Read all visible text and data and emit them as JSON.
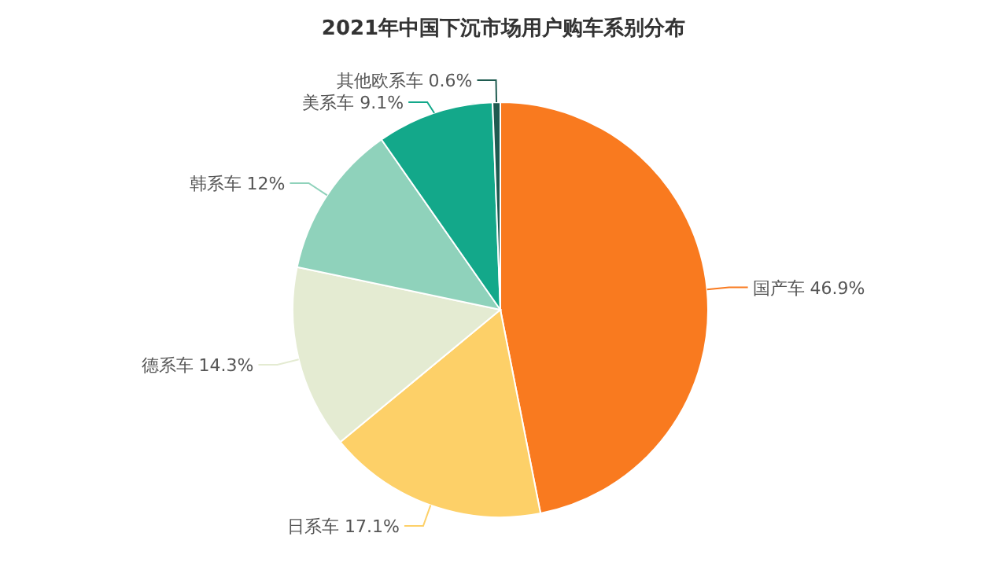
{
  "chart_data": {
    "type": "pie",
    "title": "2021年中国下沉市场用户购车系别分布",
    "categories": [
      "国产车",
      "日系车",
      "德系车",
      "韩系车",
      "美系车",
      "其他欧系车"
    ],
    "values": [
      46.9,
      17.1,
      14.3,
      12,
      9.1,
      0.6
    ],
    "value_labels": [
      "46.9%",
      "17.1%",
      "14.3%",
      "12%",
      "9.1%",
      "0.6%"
    ],
    "colors": [
      "#f97a1f",
      "#fdd068",
      "#e4ebd2",
      "#8fd2bb",
      "#13a88a",
      "#1f5b50"
    ]
  }
}
